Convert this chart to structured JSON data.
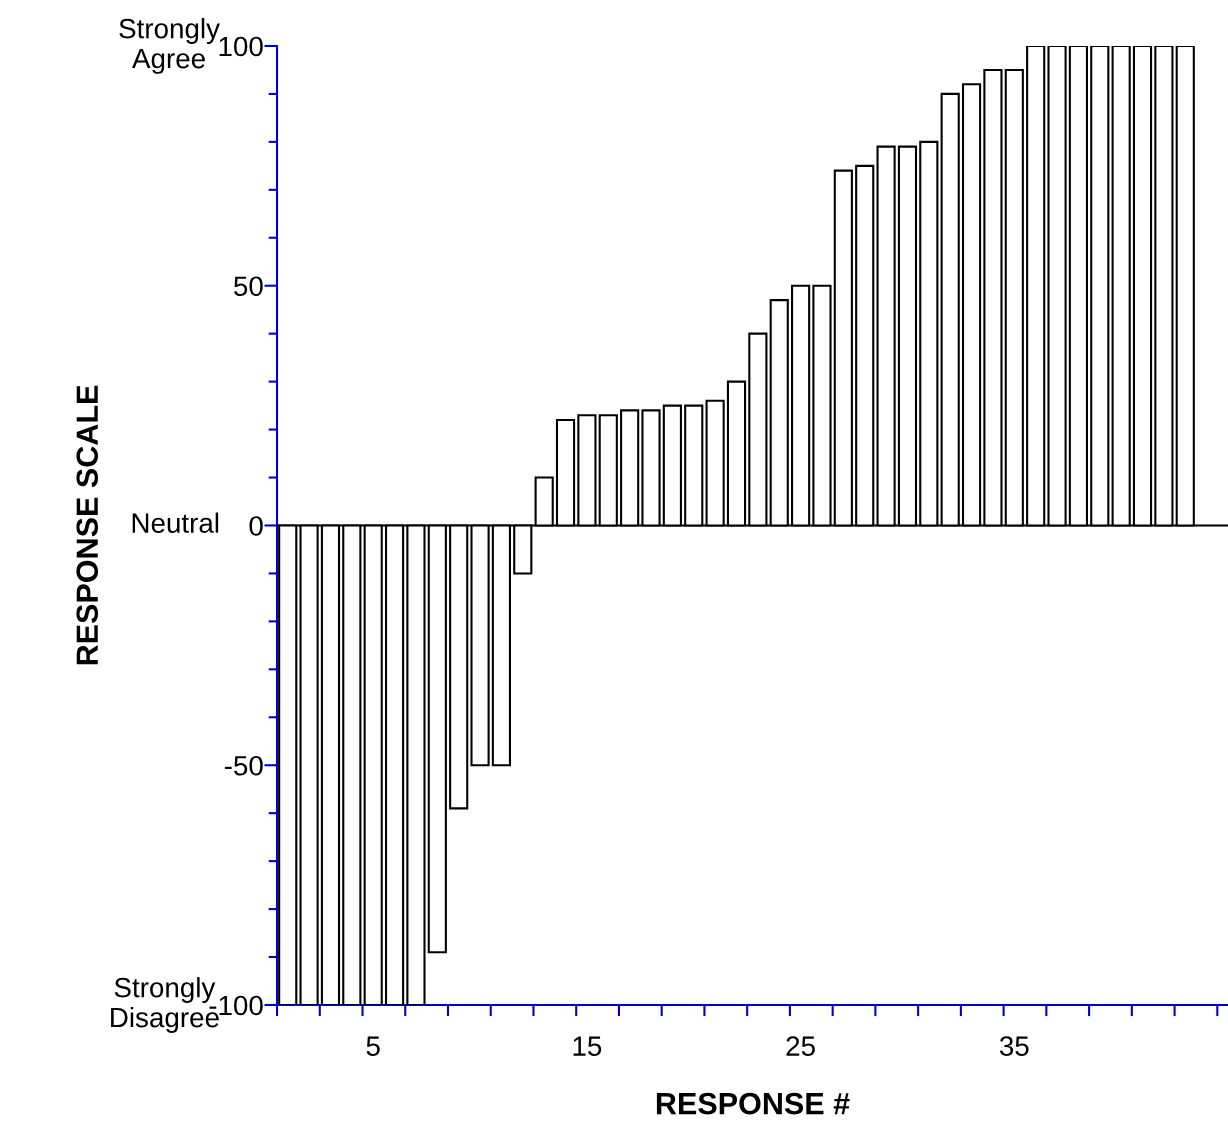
{
  "chart_data": {
    "type": "bar",
    "xlabel": "RESPONSE #",
    "ylabel": "RESPONSE SCALE",
    "categories": [
      null,
      null,
      null,
      null,
      "5",
      null,
      null,
      null,
      null,
      null,
      null,
      null,
      null,
      null,
      "15",
      null,
      null,
      null,
      null,
      null,
      null,
      null,
      null,
      null,
      "25",
      null,
      null,
      null,
      null,
      null,
      null,
      null,
      null,
      null,
      "35",
      null,
      null,
      null,
      null,
      null,
      null,
      null,
      null
    ],
    "values": [
      -100,
      -100,
      -100,
      -100,
      -100,
      -100,
      -100,
      -89,
      -59,
      -50,
      -50,
      -10,
      10,
      22,
      23,
      23,
      24,
      24,
      25,
      25,
      26,
      30,
      40,
      47,
      50,
      50,
      74,
      75,
      79,
      79,
      80,
      90,
      92,
      95,
      95,
      100,
      100,
      100,
      100,
      100,
      100,
      100,
      100
    ],
    "color": "#ffffff",
    "ylim": [
      -100,
      100
    ],
    "yticks": [
      -100,
      {
        "value": -90,
        "label": null
      },
      {
        "value": -80,
        "label": null
      },
      {
        "value": -70,
        "label": null
      },
      {
        "value": -60,
        "label": null
      },
      -50,
      {
        "value": -40,
        "label": null
      },
      {
        "value": -30,
        "label": null
      },
      {
        "value": -20,
        "label": null
      },
      {
        "value": -10,
        "label": null
      },
      0,
      {
        "value": 10,
        "label": null
      },
      {
        "value": 20,
        "label": null
      },
      {
        "value": 30,
        "label": null
      },
      {
        "value": 40,
        "label": null
      },
      50,
      {
        "value": 60,
        "label": null
      },
      {
        "value": 70,
        "label": null
      },
      {
        "value": 80,
        "label": null
      },
      {
        "value": 90,
        "label": null
      },
      100
    ],
    "ref_lines": [
      {
        "axis": "y",
        "value": 0,
        "color": "#000000"
      }
    ],
    "annotations": [
      "Strongly\nAgree",
      "Neutral",
      "Strongly\nDisagree"
    ],
    "grid": false
  }
}
